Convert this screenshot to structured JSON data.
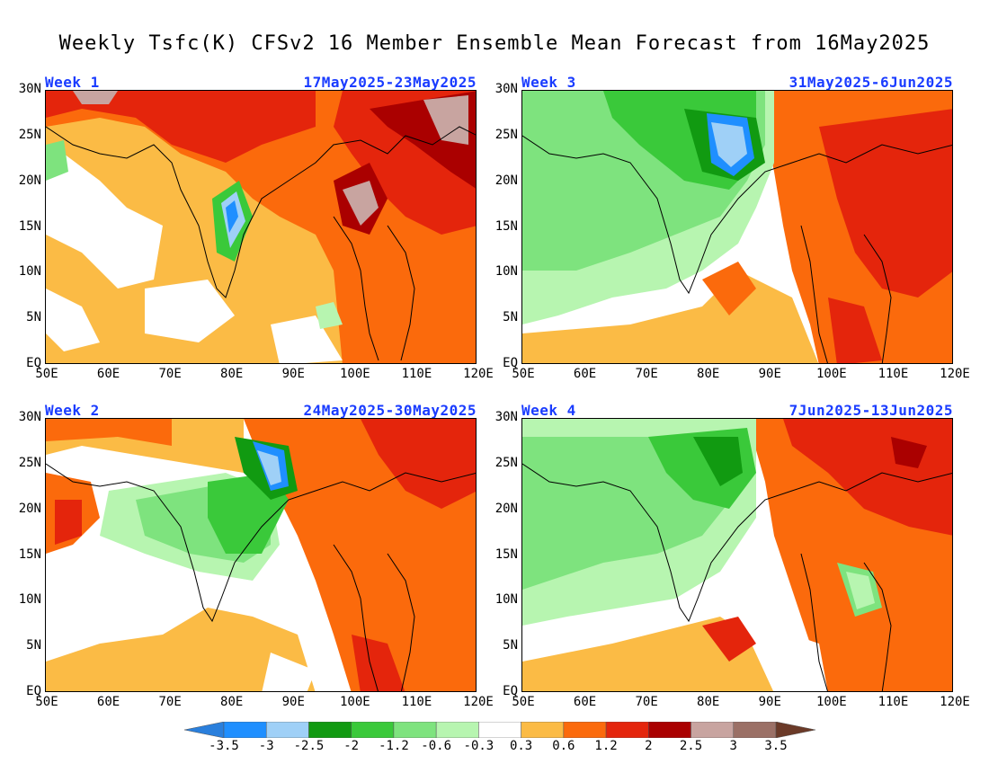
{
  "title": "Weekly Tsfc(K) CFSv2 16 Member Ensemble Mean Forecast from 16May2025",
  "panels": [
    {
      "week": "Week 1",
      "dates": "17May2025-23May2025"
    },
    {
      "week": "Week 3",
      "dates": "31May2025-6Jun2025"
    },
    {
      "week": "Week 2",
      "dates": "24May2025-30May2025"
    },
    {
      "week": "Week 4",
      "dates": "7Jun2025-13Jun2025"
    }
  ],
  "axes": {
    "y_ticks": [
      "30N",
      "25N",
      "20N",
      "15N",
      "10N",
      "5N",
      "EQ"
    ],
    "x_ticks": [
      "50E",
      "60E",
      "70E",
      "80E",
      "90E",
      "100E",
      "110E",
      "120E"
    ]
  },
  "colorbar": {
    "labels": [
      "-3.5",
      "-3",
      "-2.5",
      "-2",
      "-1.2",
      "-0.6",
      "-0.3",
      "0.3",
      "0.6",
      "1.2",
      "2",
      "2.5",
      "3",
      "3.5"
    ],
    "colors": [
      "#2a7fdc",
      "#1f8fff",
      "#9fd0f7",
      "#119a11",
      "#3ac93a",
      "#7ee37e",
      "#b7f5b0",
      "#ffffff",
      "#fbbb45",
      "#fb6a0c",
      "#e4250c",
      "#aa0000",
      "#c8a4a0",
      "#9b7066",
      "#6b3a28"
    ]
  },
  "palette": {
    "warm_light": "#fbbb45",
    "warm": "#fb6a0c",
    "hot": "#e4250c",
    "very_hot": "#aa0000",
    "extreme": "#c8a4a0",
    "cool_light": "#b7f5b0",
    "cool": "#7ee37e",
    "cooler": "#3ac93a",
    "coolest": "#119a11",
    "blue_light": "#9fd0f7",
    "blue": "#1f8fff"
  }
}
